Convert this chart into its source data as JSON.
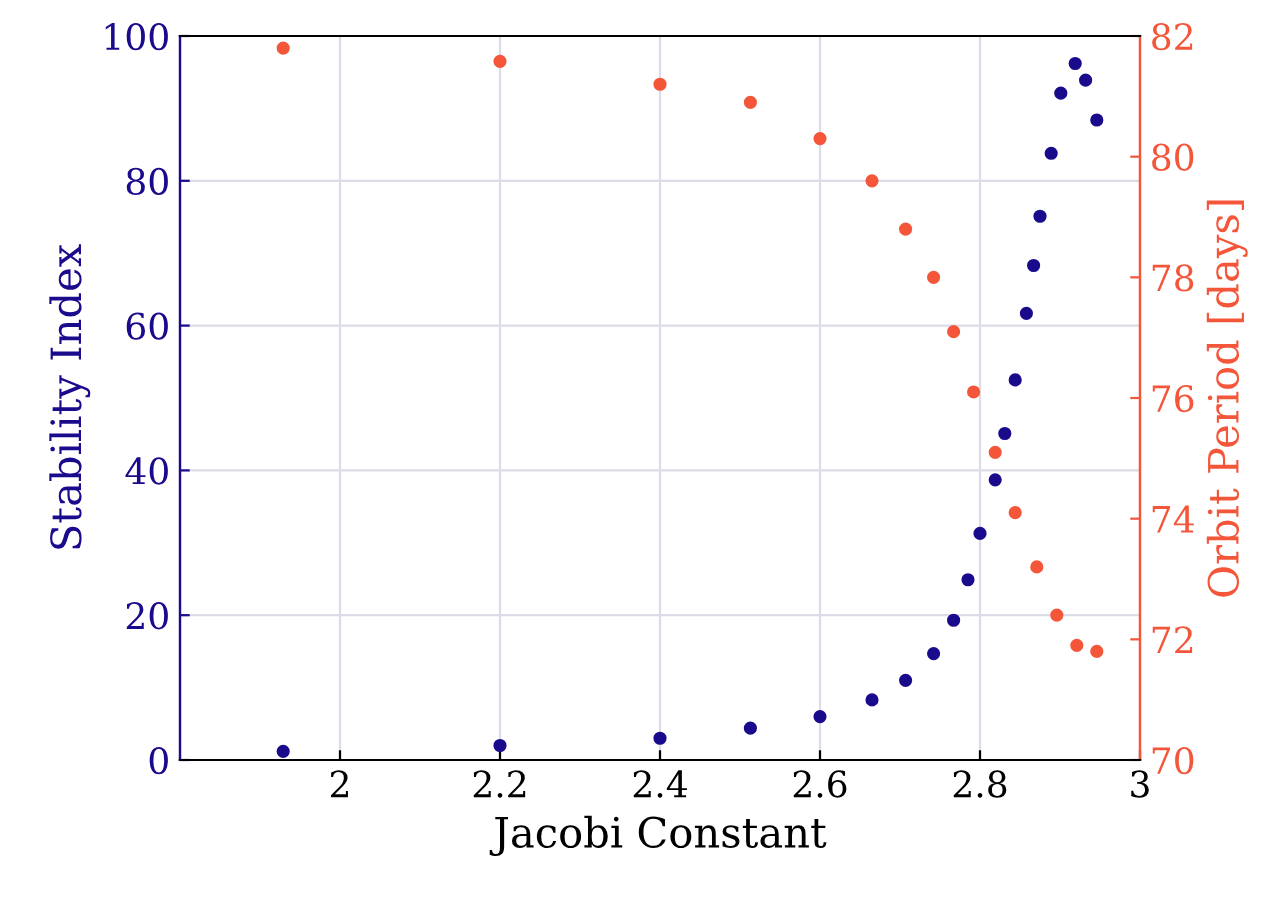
{
  "chart_data": {
    "type": "scatter",
    "xlabel": "Jacobi Constant",
    "ylabel": "Stability Index",
    "y2label": "Orbit Period [days]",
    "xlim": [
      1.8,
      3
    ],
    "xticks": [
      2,
      2.2,
      2.4,
      2.6,
      2.8,
      3
    ],
    "ylim": [
      0,
      100
    ],
    "yticks": [
      0,
      20,
      40,
      60,
      80,
      100
    ],
    "y2lim": [
      70,
      82
    ],
    "y2ticks": [
      70,
      72,
      74,
      76,
      78,
      80,
      82
    ],
    "grid": true,
    "marker": "circle",
    "legend": false,
    "series": [
      {
        "color": "#1a0a8c",
        "x": [
          1.929,
          2.2,
          2.4,
          2.513,
          2.6,
          2.665,
          2.707,
          2.742,
          2.767,
          2.785,
          2.8,
          2.819,
          2.831,
          2.844,
          2.858,
          2.867,
          2.875,
          2.889,
          2.901,
          2.919,
          2.932,
          2.946
        ],
        "values": [
          1.2,
          2.0,
          3.0,
          4.4,
          6.0,
          8.3,
          11,
          14.7,
          19.3,
          24.9,
          31.3,
          38.7,
          45.1,
          52.5,
          61.7,
          68.3,
          75.1,
          83.8,
          92.1,
          96.2,
          93.9,
          88.4
        ]
      },
      {
        "color": "#f4563a",
        "axis": "y2",
        "x": [
          1.929,
          2.2,
          2.4,
          2.513,
          2.6,
          2.665,
          2.707,
          2.742,
          2.767,
          2.792,
          2.819,
          2.844,
          2.871,
          2.896,
          2.921,
          2.946
        ],
        "values": [
          81.8,
          81.58,
          81.2,
          80.9,
          80.3,
          79.6,
          78.8,
          78.0,
          77.1,
          76.1,
          75.1,
          74.1,
          73.2,
          72.4,
          71.9,
          71.8
        ]
      }
    ]
  }
}
